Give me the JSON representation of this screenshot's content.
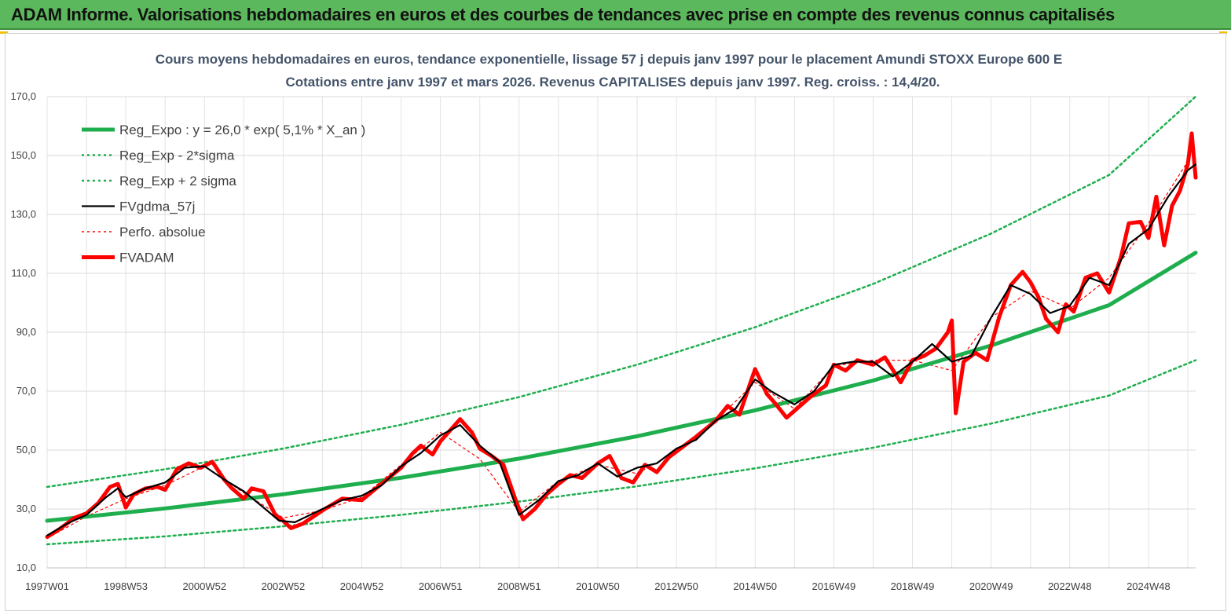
{
  "banner": {
    "text": "ADAM Informe. Valorisations hebdomadaires en euros et des courbes de tendances avec prise en compte des revenus connus capitalisés"
  },
  "chart_data": {
    "type": "line",
    "title": "Cours moyens hebdomadaires en euros, tendance exponentielle, lissage 57 j depuis janv 1997  pour le placement Amundi STOXX Europe 600 E",
    "subtitle": "Cotations entre janv 1997 et mars 2026. Revenus CAPITALISES  depuis janv 1997. Reg. croiss. : 14,4/20.",
    "xlabel": "",
    "ylabel": "",
    "ylim": [
      10,
      170
    ],
    "xlim": [
      1997.0,
      2026.2
    ],
    "y_ticks": [
      "10,0",
      "30,0",
      "50,0",
      "70,0",
      "90,0",
      "110,0",
      "130,0",
      "150,0",
      "170,0"
    ],
    "y_tick_values": [
      10,
      30,
      50,
      70,
      90,
      110,
      130,
      150,
      170
    ],
    "x_ticks": [
      "1997W01",
      "1998W53",
      "2000W52",
      "2002W52",
      "2004W52",
      "2006W51",
      "2008W51",
      "2010W50",
      "2012W50",
      "2014W50",
      "2016W49",
      "2018W49",
      "2020W49",
      "2022W48",
      "2024W48"
    ],
    "x_tick_values": [
      1997.0,
      1999.0,
      2001.0,
      2003.0,
      2005.0,
      2007.0,
      2009.0,
      2011.0,
      2013.0,
      2015.0,
      2017.0,
      2019.0,
      2021.0,
      2023.0,
      2025.0
    ],
    "grid": true,
    "legend_position": "top-left",
    "series": [
      {
        "name": "Reg_Expo : y = 26,0 * exp( 5,1% *  X_an )",
        "color": "#1fae4e",
        "style": "solid-thick",
        "x": [
          1997.0,
          2000.0,
          2003.0,
          2006.0,
          2009.0,
          2012.0,
          2015.0,
          2018.0,
          2021.0,
          2024.0,
          2026.2
        ],
        "values": [
          26.0,
          30.2,
          35.0,
          40.6,
          47.1,
          54.7,
          63.5,
          73.6,
          85.5,
          99.2,
          117.0
        ]
      },
      {
        "name": "Reg_Exp - 2*sigma",
        "color": "#1fae4e",
        "style": "dotted",
        "x": [
          1997.0,
          2000.0,
          2003.0,
          2006.0,
          2009.0,
          2012.0,
          2015.0,
          2018.0,
          2021.0,
          2024.0,
          2026.2
        ],
        "values": [
          18.0,
          20.7,
          24.1,
          28.0,
          32.5,
          37.7,
          43.8,
          50.8,
          59.0,
          68.5,
          80.5
        ]
      },
      {
        "name": "Reg_Exp + 2 sigma",
        "color": "#1fae4e",
        "style": "dotted",
        "x": [
          1997.0,
          2000.0,
          2003.0,
          2006.0,
          2009.0,
          2012.0,
          2015.0,
          2018.0,
          2021.0,
          2024.0,
          2026.2
        ],
        "values": [
          37.5,
          43.5,
          50.5,
          58.6,
          68.0,
          79.0,
          91.7,
          106.4,
          123.5,
          143.4,
          170.0
        ]
      },
      {
        "name": "FVgdma_57j",
        "color": "#000000",
        "style": "solid",
        "x": [
          1997.0,
          1997.5,
          1998.0,
          1998.5,
          1998.8,
          1999.0,
          1999.5,
          2000.0,
          2000.5,
          2001.0,
          2001.5,
          2002.0,
          2002.5,
          2002.9,
          2003.3,
          2004.0,
          2004.5,
          2005.0,
          2005.5,
          2006.0,
          2006.5,
          2007.0,
          2007.5,
          2008.0,
          2008.5,
          2009.0,
          2009.5,
          2010.0,
          2010.5,
          2011.0,
          2011.5,
          2012.0,
          2012.5,
          2013.0,
          2013.5,
          2014.0,
          2014.5,
          2015.0,
          2015.4,
          2016.0,
          2016.5,
          2017.0,
          2017.5,
          2018.0,
          2018.5,
          2019.0,
          2019.5,
          2020.0,
          2020.5,
          2021.0,
          2021.5,
          2022.0,
          2022.5,
          2023.0,
          2023.5,
          2024.0,
          2024.5,
          2025.0,
          2025.5,
          2026.0,
          2026.2
        ],
        "values": [
          21.0,
          25.0,
          28.0,
          34.0,
          37.0,
          34.0,
          37.0,
          39.0,
          44.0,
          44.5,
          40.0,
          36.0,
          30.5,
          26.0,
          25.5,
          30.0,
          33.0,
          34.5,
          38.0,
          44.5,
          49.0,
          55.0,
          58.5,
          51.5,
          46.0,
          28.0,
          33.0,
          39.5,
          41.5,
          45.5,
          41.0,
          44.0,
          45.5,
          50.5,
          53.5,
          60.0,
          64.0,
          74.0,
          70.0,
          65.5,
          70.0,
          79.0,
          80.0,
          80.0,
          75.0,
          80.0,
          86.0,
          80.0,
          82.0,
          95.0,
          106.0,
          103.0,
          96.5,
          99.0,
          108.5,
          106.0,
          120.0,
          125.0,
          136.0,
          145.0,
          147.0
        ]
      },
      {
        "name": "Perfo. absolue",
        "color": "#ff0000",
        "style": "dotted",
        "x": [
          1997.0,
          1998.0,
          1999.0,
          2000.0,
          2001.0,
          2002.0,
          2003.0,
          2004.0,
          2005.0,
          2006.0,
          2007.0,
          2008.0,
          2009.0,
          2010.0,
          2011.0,
          2012.0,
          2013.0,
          2014.0,
          2015.0,
          2016.0,
          2017.0,
          2018.0,
          2019.0,
          2020.0,
          2021.0,
          2022.0,
          2023.0,
          2024.0,
          2025.0,
          2026.0
        ],
        "values": [
          20.0,
          27.5,
          33.5,
          38.0,
          44.5,
          35.5,
          27.0,
          29.5,
          34.0,
          45.0,
          56.0,
          47.0,
          29.0,
          39.5,
          45.0,
          42.0,
          49.5,
          60.0,
          73.0,
          64.0,
          78.5,
          80.5,
          80.5,
          77.0,
          95.0,
          104.0,
          98.0,
          108.5,
          127.0,
          148.0
        ]
      },
      {
        "name": "FVADAM",
        "color": "#ff0000",
        "style": "solid-thick",
        "x": [
          1997.0,
          1997.3,
          1997.7,
          1998.0,
          1998.3,
          1998.6,
          1998.8,
          1999.0,
          1999.2,
          1999.5,
          1999.8,
          2000.0,
          2000.3,
          2000.6,
          2000.9,
          2001.2,
          2001.5,
          2001.7,
          2002.0,
          2002.2,
          2002.5,
          2002.8,
          2003.0,
          2003.2,
          2003.5,
          2004.0,
          2004.5,
          2005.0,
          2005.5,
          2006.0,
          2006.3,
          2006.5,
          2006.8,
          2007.0,
          2007.3,
          2007.5,
          2007.8,
          2008.0,
          2008.3,
          2008.6,
          2008.9,
          2009.1,
          2009.4,
          2009.7,
          2010.0,
          2010.3,
          2010.6,
          2011.0,
          2011.3,
          2011.6,
          2011.9,
          2012.2,
          2012.5,
          2012.8,
          2013.0,
          2013.5,
          2014.0,
          2014.3,
          2014.6,
          2015.0,
          2015.3,
          2015.5,
          2015.8,
          2016.1,
          2016.4,
          2016.8,
          2017.0,
          2017.3,
          2017.6,
          2018.0,
          2018.3,
          2018.7,
          2019.0,
          2019.3,
          2019.6,
          2019.9,
          2020.0,
          2020.1,
          2020.3,
          2020.6,
          2020.9,
          2021.2,
          2021.5,
          2021.8,
          2022.0,
          2022.2,
          2022.4,
          2022.7,
          2022.9,
          2023.1,
          2023.4,
          2023.7,
          2024.0,
          2024.3,
          2024.5,
          2024.8,
          2025.0,
          2025.2,
          2025.4,
          2025.6,
          2025.8,
          2026.0,
          2026.1,
          2026.2
        ],
        "values": [
          20.5,
          23.0,
          27.0,
          28.5,
          32.0,
          37.5,
          38.5,
          30.5,
          35.0,
          37.0,
          37.5,
          36.5,
          43.5,
          45.5,
          44.0,
          46.0,
          40.0,
          37.0,
          33.5,
          37.0,
          36.0,
          28.0,
          26.0,
          23.5,
          25.0,
          29.5,
          33.5,
          33.0,
          38.5,
          44.0,
          49.0,
          51.5,
          48.5,
          53.0,
          57.5,
          60.5,
          56.0,
          50.5,
          48.0,
          45.0,
          33.5,
          26.5,
          30.0,
          35.0,
          38.5,
          41.5,
          40.5,
          45.5,
          48.0,
          40.5,
          39.0,
          45.0,
          42.5,
          47.5,
          49.5,
          54.5,
          60.0,
          65.0,
          62.0,
          77.5,
          69.0,
          66.0,
          61.0,
          64.5,
          68.0,
          72.0,
          79.0,
          77.0,
          80.5,
          79.0,
          81.5,
          73.0,
          80.5,
          82.0,
          84.5,
          90.0,
          94.0,
          62.5,
          80.0,
          83.0,
          80.5,
          95.0,
          106.0,
          110.5,
          107.0,
          102.0,
          94.5,
          90.0,
          99.5,
          97.0,
          108.5,
          110.0,
          103.5,
          115.5,
          127.0,
          127.5,
          122.0,
          136.0,
          119.5,
          133.0,
          138.0,
          147.0,
          157.5,
          142.5
        ]
      }
    ]
  }
}
